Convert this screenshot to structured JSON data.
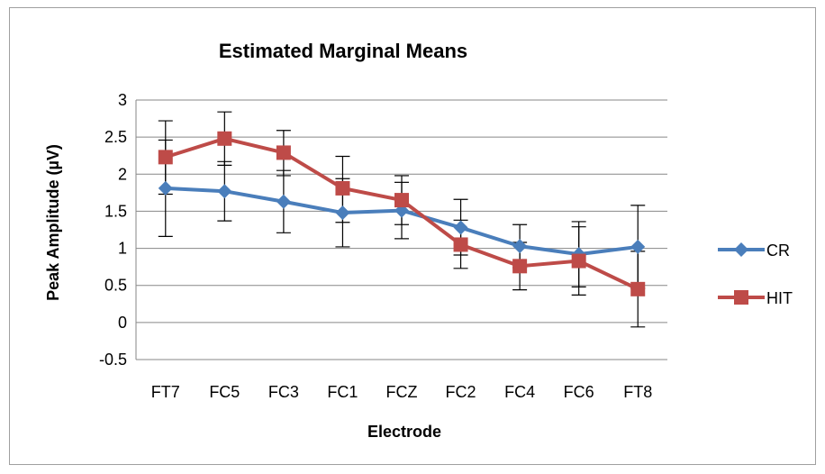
{
  "chart_data": {
    "type": "line",
    "title": "Estimated Marginal Means",
    "xlabel": "Electrode",
    "ylabel": "Peak Amplitude (µV)",
    "categories": [
      "FT7",
      "FC5",
      "FC3",
      "FC1",
      "FCZ",
      "FC2",
      "FC4",
      "FC6",
      "FT8"
    ],
    "ylim": [
      -0.5,
      3
    ],
    "yticks": [
      -0.5,
      0,
      0.5,
      1,
      1.5,
      2,
      2.5,
      3
    ],
    "ytick_labels": [
      "-0.5",
      "0",
      "0.5",
      "1",
      "1.5",
      "2",
      "2.5",
      "3"
    ],
    "grid": "horizontal",
    "legend_position": "right",
    "series": [
      {
        "name": "CR",
        "color": "#4a7ebb",
        "marker": "diamond",
        "values": [
          1.81,
          1.77,
          1.63,
          1.48,
          1.51,
          1.28,
          1.03,
          0.92,
          1.02
        ],
        "err_low": [
          1.16,
          1.37,
          1.21,
          1.02,
          1.13,
          0.91,
          0.74,
          0.48,
          0.46
        ],
        "err_high": [
          2.46,
          2.17,
          2.05,
          1.94,
          1.89,
          1.66,
          1.32,
          1.36,
          1.58
        ]
      },
      {
        "name": "HIT",
        "color": "#be4b48",
        "marker": "square",
        "values": [
          2.23,
          2.48,
          2.29,
          1.81,
          1.65,
          1.05,
          0.76,
          0.83,
          0.45
        ],
        "err_low": [
          1.73,
          2.12,
          1.98,
          1.35,
          1.32,
          0.73,
          0.44,
          0.37,
          -0.06
        ],
        "err_high": [
          2.72,
          2.84,
          2.59,
          2.24,
          1.98,
          1.38,
          1.08,
          1.29,
          0.96
        ]
      }
    ]
  }
}
